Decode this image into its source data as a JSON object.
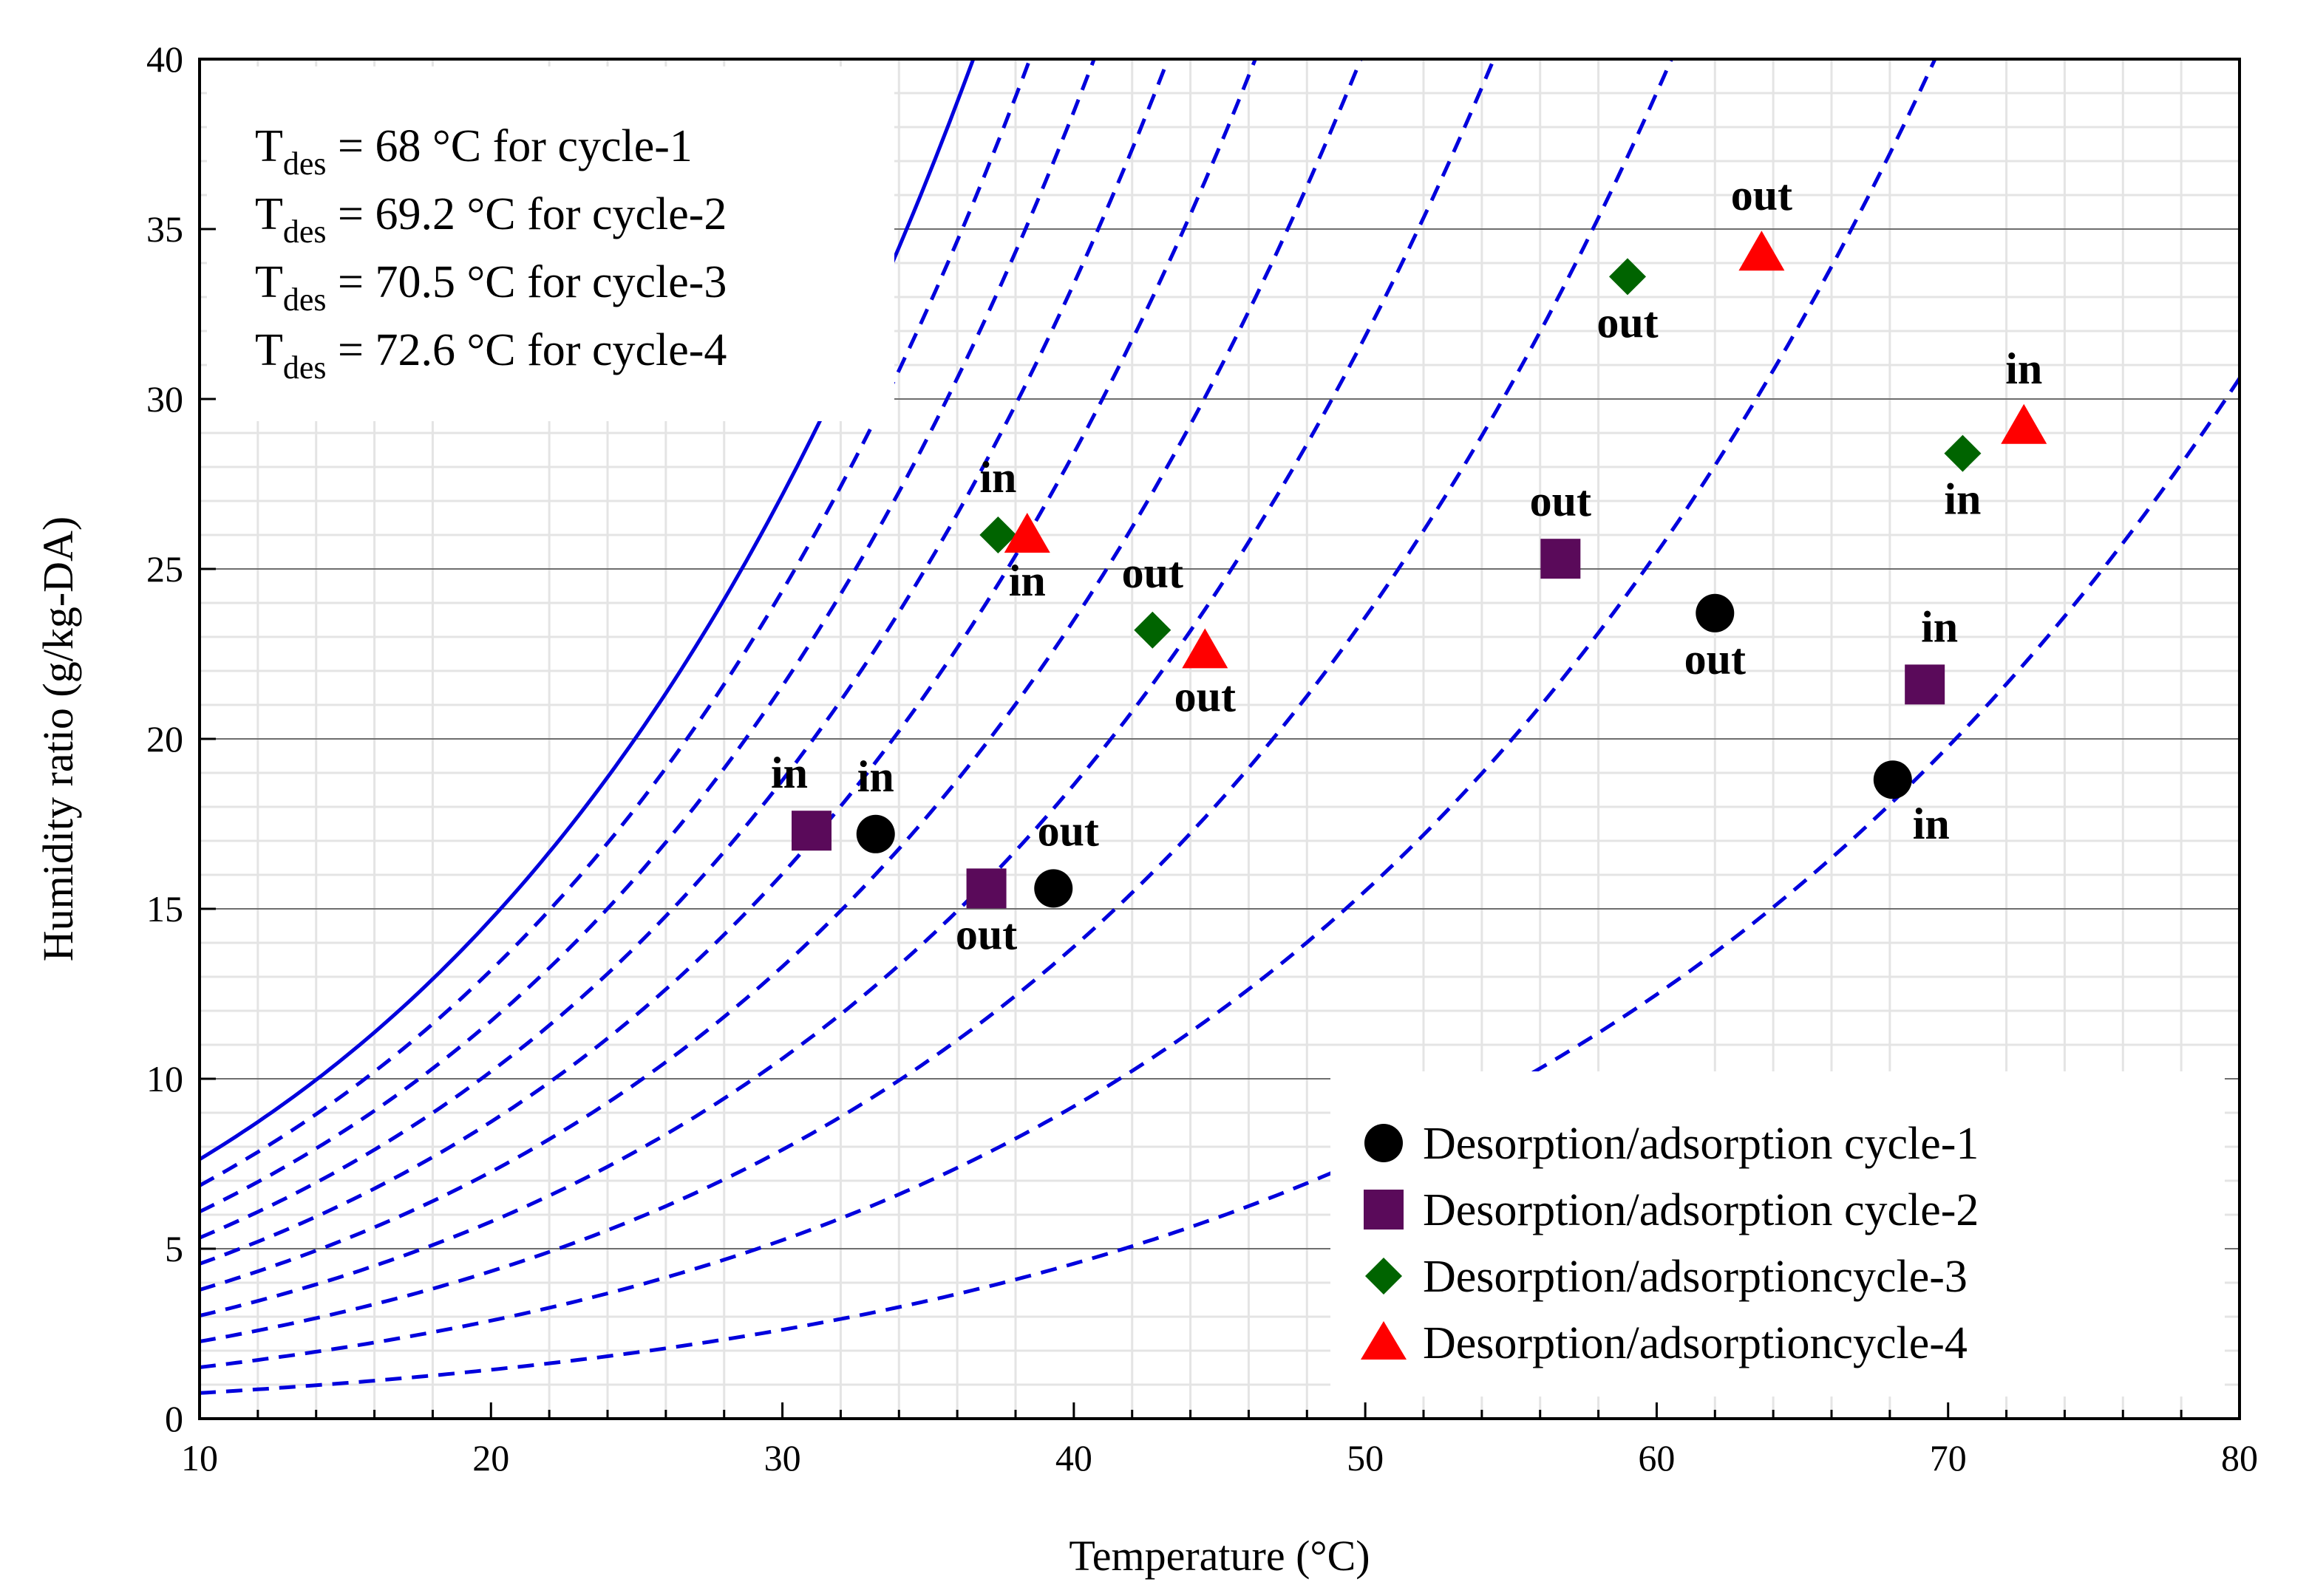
{
  "chart_data": {
    "type": "scatter",
    "title": "",
    "xlabel": "Temperature (°C)",
    "ylabel": "Humidity ratio (g/kg-DA)",
    "xlim": [
      10,
      80
    ],
    "ylim": [
      0,
      40
    ],
    "x_ticks": [
      "10",
      "20",
      "30",
      "40",
      "50",
      "60",
      "70",
      "80"
    ],
    "y_ticks": [
      "0",
      "5",
      "10",
      "15",
      "20",
      "25",
      "30",
      "35",
      "40"
    ],
    "grid": true,
    "legend_position": "bottom-right",
    "annotations": [
      {
        "prefix": "T",
        "sub": "des",
        "text": " = 68 °C for cycle-1"
      },
      {
        "prefix": "T",
        "sub": "des",
        "text": " = 69.2 °C for cycle-2"
      },
      {
        "prefix": "T",
        "sub": "des",
        "text": " = 70.5 °C for cycle-3"
      },
      {
        "prefix": "T",
        "sub": "des",
        "text": " = 72.6 °C for cycle-4"
      }
    ],
    "series": [
      {
        "name": "Desorption/adsorption cycle-1",
        "marker": "circle",
        "color": "#000000",
        "points": [
          {
            "x": 33.2,
            "y": 17.2,
            "label": "in",
            "pos": "above"
          },
          {
            "x": 39.3,
            "y": 15.6,
            "label": "out",
            "pos": "above-right"
          },
          {
            "x": 62.0,
            "y": 23.7,
            "label": "out",
            "pos": "below"
          },
          {
            "x": 68.1,
            "y": 18.8,
            "label": "in",
            "pos": "below-right"
          }
        ]
      },
      {
        "name": "Desorption/adsorption cycle-2",
        "marker": "square",
        "color": "#5a0a5a",
        "points": [
          {
            "x": 31.0,
            "y": 17.3,
            "label": "in",
            "pos": "above-left"
          },
          {
            "x": 37.0,
            "y": 15.6,
            "label": "out",
            "pos": "below"
          },
          {
            "x": 56.7,
            "y": 25.3,
            "label": "out",
            "pos": "above"
          },
          {
            "x": 69.2,
            "y": 21.6,
            "label": "in",
            "pos": "above-right"
          }
        ]
      },
      {
        "name": "Desorption/adsorptioncycle-3",
        "marker": "diamond",
        "color": "#006400",
        "points": [
          {
            "x": 37.4,
            "y": 26.0,
            "label": "in",
            "pos": "above"
          },
          {
            "x": 42.7,
            "y": 23.2,
            "label": "out",
            "pos": "above"
          },
          {
            "x": 59.0,
            "y": 33.6,
            "label": "out",
            "pos": "below"
          },
          {
            "x": 70.5,
            "y": 28.4,
            "label": "in",
            "pos": "below"
          }
        ]
      },
      {
        "name": "Desorption/adsorptioncycle-4",
        "marker": "triangle",
        "color": "#ff0000",
        "points": [
          {
            "x": 38.4,
            "y": 26.0,
            "label": "in",
            "pos": "below"
          },
          {
            "x": 44.5,
            "y": 22.6,
            "label": "out",
            "pos": "below"
          },
          {
            "x": 63.6,
            "y": 34.3,
            "label": "out",
            "pos": "above"
          },
          {
            "x": 72.6,
            "y": 29.2,
            "label": "in",
            "pos": "above"
          }
        ]
      }
    ],
    "curves": {
      "color": "#0000dd",
      "saturation_rh": 100,
      "dashed_rh": [
        90,
        80,
        70,
        60,
        50,
        40,
        30,
        20,
        10
      ]
    }
  }
}
